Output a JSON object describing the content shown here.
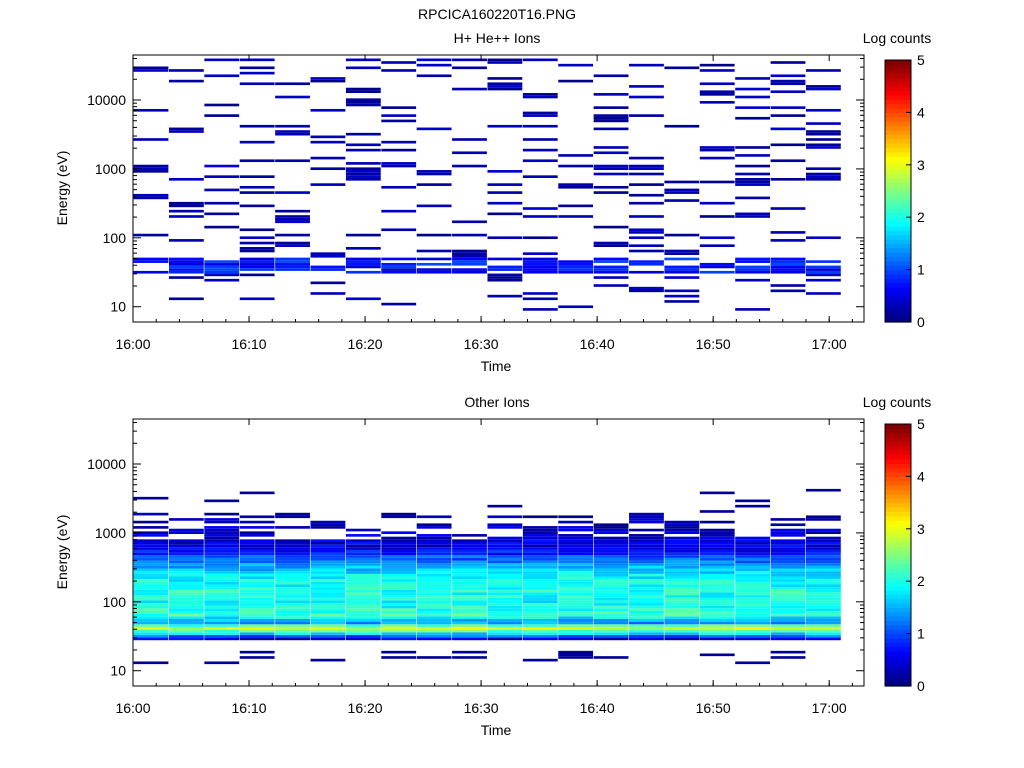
{
  "figure_title": "RPCICA160220T16.PNG",
  "colorbar": {
    "title": "Log counts",
    "ticks": [
      "0",
      "1",
      "2",
      "3",
      "4",
      "5"
    ],
    "range": [
      0,
      5
    ],
    "colormap": "jet"
  },
  "chart_data": [
    {
      "type": "heatmap",
      "title": "H+ He++ Ions",
      "xlabel": "Time",
      "ylabel": "Energy (eV)",
      "x_ticks": [
        "16:00",
        "16:10",
        "16:20",
        "16:30",
        "16:40",
        "16:50",
        "17:00"
      ],
      "y_ticks": [
        "10",
        "100",
        "1000",
        "10000"
      ],
      "x_range": [
        "16:00",
        "17:03"
      ],
      "y_scale": "log",
      "y_range": [
        6,
        45000
      ],
      "grid": false,
      "description": "Sparse low-count (log ~0-0.5) bins scattered across energies 10 eV - 40 keV; slightly higher counts (log ~0.5-1) near 35-45 eV",
      "time_columns": [
        "16:00",
        "16:03",
        "16:06",
        "16:09",
        "16:12",
        "16:15",
        "16:18",
        "16:21",
        "16:24",
        "16:27",
        "16:30",
        "16:33",
        "16:36",
        "16:39",
        "16:42",
        "16:45",
        "16:48",
        "16:51",
        "16:54",
        "16:57",
        "17:00"
      ],
      "dominant_band": {
        "energy_eV": [
          35,
          45
        ],
        "log_counts": 0.6
      }
    },
    {
      "type": "heatmap",
      "title": "Other Ions",
      "xlabel": "Time",
      "ylabel": "Energy (eV)",
      "x_ticks": [
        "16:00",
        "16:10",
        "16:20",
        "16:30",
        "16:40",
        "16:50",
        "17:00"
      ],
      "y_ticks": [
        "10",
        "100",
        "1000",
        "10000"
      ],
      "x_range": [
        "16:00",
        "17:03"
      ],
      "y_scale": "log",
      "y_range": [
        6,
        45000
      ],
      "grid": false,
      "description": "Continuous population from ~30 eV to ~2 keV; peak log counts ~3 near 40 eV, ~2 between 60-400 eV, low (~0.2) above 1 keV",
      "energy_profile": [
        {
          "energy_eV": 28,
          "log_counts": 0.2
        },
        {
          "energy_eV": 35,
          "log_counts": 1.8
        },
        {
          "energy_eV": 42,
          "log_counts": 3.0
        },
        {
          "energy_eV": 50,
          "log_counts": 1.2
        },
        {
          "energy_eV": 65,
          "log_counts": 2.2
        },
        {
          "energy_eV": 90,
          "log_counts": 1.9
        },
        {
          "energy_eV": 150,
          "log_counts": 2.0
        },
        {
          "energy_eV": 250,
          "log_counts": 1.8
        },
        {
          "energy_eV": 400,
          "log_counts": 1.2
        },
        {
          "energy_eV": 600,
          "log_counts": 0.5
        },
        {
          "energy_eV": 1200,
          "log_counts": 0.3
        },
        {
          "energy_eV": 1800,
          "log_counts": 0.1
        }
      ]
    }
  ]
}
